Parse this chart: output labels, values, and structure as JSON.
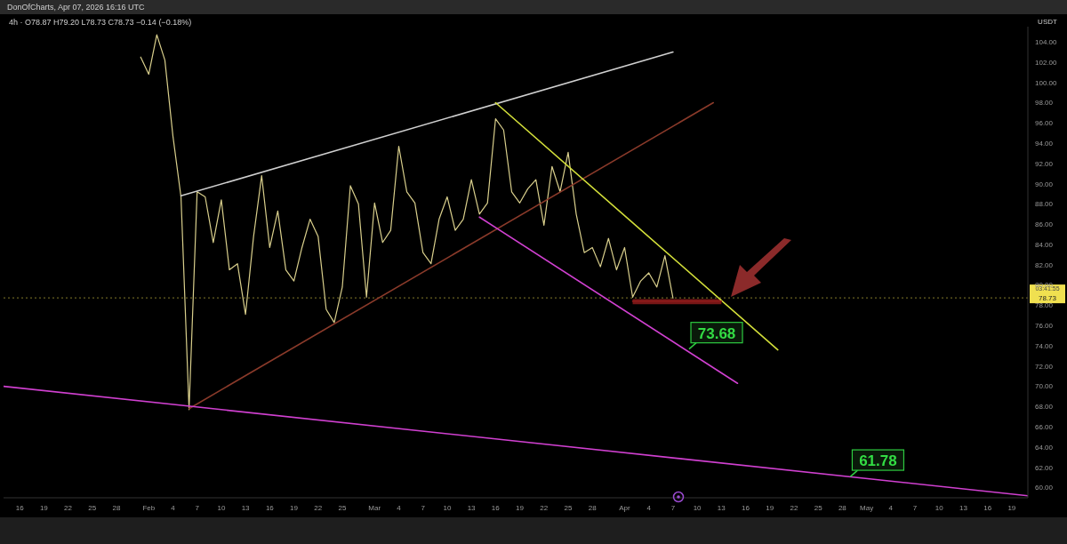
{
  "chart_data": {
    "type": "line",
    "title": "4h · O78.87 H79.20 L78.73 C78.73 −0.14 (−0.18%)",
    "subtitle": "DonOfCharts, Apr 07, 2026 16:16 UTC",
    "ylabel": "USDT",
    "xlim": [
      "--01-14",
      "--05-21"
    ],
    "ylim": [
      59,
      105.5
    ],
    "xticks": [
      {
        "value": "--01-16",
        "label": "16"
      },
      {
        "value": "--01-19",
        "label": "19"
      },
      {
        "value": "--01-22",
        "label": "22"
      },
      {
        "value": "--01-25",
        "label": "25"
      },
      {
        "value": "--01-28",
        "label": "28"
      },
      {
        "value": "--02-01",
        "label": "Feb"
      },
      {
        "value": "--02-04",
        "label": "4"
      },
      {
        "value": "--02-07",
        "label": "7"
      },
      {
        "value": "--02-10",
        "label": "10"
      },
      {
        "value": "--02-13",
        "label": "13"
      },
      {
        "value": "--02-16",
        "label": "16"
      },
      {
        "value": "--02-19",
        "label": "19"
      },
      {
        "value": "--02-22",
        "label": "22"
      },
      {
        "value": "--02-25",
        "label": "25"
      },
      {
        "value": "--03-01",
        "label": "Mar"
      },
      {
        "value": "--03-04",
        "label": "4"
      },
      {
        "value": "--03-07",
        "label": "7"
      },
      {
        "value": "--03-10",
        "label": "10"
      },
      {
        "value": "--03-13",
        "label": "13"
      },
      {
        "value": "--03-16",
        "label": "16"
      },
      {
        "value": "--03-19",
        "label": "19"
      },
      {
        "value": "--03-22",
        "label": "22"
      },
      {
        "value": "--03-25",
        "label": "25"
      },
      {
        "value": "--03-28",
        "label": "28"
      },
      {
        "value": "--04-01",
        "label": "Apr"
      },
      {
        "value": "--04-04",
        "label": "4"
      },
      {
        "value": "--04-07",
        "label": "7"
      },
      {
        "value": "--04-10",
        "label": "10"
      },
      {
        "value": "--04-13",
        "label": "13"
      },
      {
        "value": "--04-16",
        "label": "16"
      },
      {
        "value": "--04-19",
        "label": "19"
      },
      {
        "value": "--04-22",
        "label": "22"
      },
      {
        "value": "--04-25",
        "label": "25"
      },
      {
        "value": "--04-28",
        "label": "28"
      },
      {
        "value": "--05-01",
        "label": "May"
      },
      {
        "value": "--05-04",
        "label": "4"
      },
      {
        "value": "--05-07",
        "label": "7"
      },
      {
        "value": "--05-10",
        "label": "10"
      },
      {
        "value": "--05-13",
        "label": "13"
      },
      {
        "value": "--05-16",
        "label": "16"
      },
      {
        "value": "--05-19",
        "label": "19"
      }
    ],
    "yticks": [
      {
        "value": 60,
        "label": "60.00"
      },
      {
        "value": 62,
        "label": "62.00"
      },
      {
        "value": 64,
        "label": "64.00"
      },
      {
        "value": 66,
        "label": "66.00"
      },
      {
        "value": 68,
        "label": "68.00"
      },
      {
        "value": 70,
        "label": "70.00"
      },
      {
        "value": 72,
        "label": "72.00"
      },
      {
        "value": 74,
        "label": "74.00"
      },
      {
        "value": 76,
        "label": "76.00"
      },
      {
        "value": 78,
        "label": "78.00"
      },
      {
        "value": 80,
        "label": "80.00"
      },
      {
        "value": 82,
        "label": "82.00"
      },
      {
        "value": 84,
        "label": "84.00"
      },
      {
        "value": 86,
        "label": "86.00"
      },
      {
        "value": 88,
        "label": "88.00"
      },
      {
        "value": 90,
        "label": "90.00"
      },
      {
        "value": 92,
        "label": "92.00"
      },
      {
        "value": 94,
        "label": "94.00"
      },
      {
        "value": 96,
        "label": "96.00"
      },
      {
        "value": 98,
        "label": "98.00"
      },
      {
        "value": 100,
        "label": "100.00"
      },
      {
        "value": 102,
        "label": "102.00"
      },
      {
        "value": 104,
        "label": "104.00"
      }
    ],
    "grid": false,
    "legend": false,
    "marker": "none",
    "line_style": "solid",
    "series": [
      {
        "color": "#d9cf8c",
        "x": [
          "--01-31",
          "--02-01",
          "--02-02",
          "--02-03",
          "--02-04",
          "--02-05",
          "--02-06",
          "--02-07",
          "--02-08",
          "--02-09",
          "--02-10",
          "--02-11",
          "--02-12",
          "--02-13",
          "--02-14",
          "--02-15",
          "--02-16",
          "--02-17",
          "--02-18",
          "--02-19",
          "--02-20",
          "--02-21",
          "--02-22",
          "--02-23",
          "--02-24",
          "--02-25",
          "--02-26",
          "--02-27",
          "--02-28",
          "--03-01",
          "--03-02",
          "--03-03",
          "--03-04",
          "--03-05",
          "--03-06",
          "--03-07",
          "--03-08",
          "--03-09",
          "--03-10",
          "--03-11",
          "--03-12",
          "--03-13",
          "--03-14",
          "--03-15",
          "--03-16",
          "--03-17",
          "--03-18",
          "--03-19",
          "--03-20",
          "--03-21",
          "--03-22",
          "--03-23",
          "--03-24",
          "--03-25",
          "--03-26",
          "--03-27",
          "--03-28",
          "--03-29",
          "--03-30",
          "--03-31",
          "--04-01",
          "--04-02",
          "--04-03",
          "--04-04",
          "--04-05",
          "--04-06",
          "--04-07"
        ],
        "values": [
          102.5,
          100.8,
          104.7,
          102.2,
          94.7,
          88.7,
          67.7,
          89.2,
          88.7,
          84.2,
          88.4,
          81.5,
          82.1,
          77.1,
          84.8,
          90.8,
          83.7,
          87.3,
          81.5,
          80.4,
          83.7,
          86.5,
          84.8,
          77.6,
          76.3,
          79.8,
          89.8,
          88.0,
          78.8,
          88.1,
          84.2,
          85.4,
          93.7,
          89.2,
          88.1,
          83.2,
          82.1,
          86.5,
          88.7,
          85.4,
          86.5,
          90.4,
          87.0,
          88.1,
          96.4,
          95.3,
          89.2,
          88.1,
          89.5,
          90.4,
          85.9,
          91.7,
          89.2,
          93.1,
          87.0,
          83.2,
          83.7,
          81.8,
          84.6,
          81.5,
          83.7,
          78.8,
          80.4,
          81.2,
          79.8,
          82.9,
          78.7
        ]
      },
      {
        "color": "#d0d0d0",
        "x": [
          "--02-05",
          "--04-07"
        ],
        "values": [
          88.8,
          103.0
        ]
      },
      {
        "color": "#8a3a2a",
        "x": [
          "--02-06",
          "--04-12"
        ],
        "values": [
          67.8,
          98.0
        ]
      },
      {
        "color": "#d4e03a",
        "x": [
          "--03-16",
          "--04-20"
        ],
        "values": [
          98.0,
          73.6
        ]
      },
      {
        "color": "#d040d0",
        "x": [
          "--03-14",
          "--04-15"
        ],
        "values": [
          86.7,
          70.3
        ]
      },
      {
        "color": "#d040d0",
        "x": [
          "--01-14",
          "--05-21"
        ],
        "values": [
          70.0,
          59.2
        ]
      },
      {
        "color": "#8b1a1a",
        "x": [
          "--04-02",
          "--04-13"
        ],
        "values": [
          78.4,
          78.4
        ],
        "lower": [
          78.1,
          78.1
        ],
        "upper": [
          78.6,
          78.6
        ]
      }
    ],
    "ref_lines": [
      {
        "axis": "y",
        "value": 78.73,
        "label": "78.73",
        "color": "#f0e050",
        "line_style": "dotted"
      }
    ],
    "annotations": [
      {
        "text": "73.68",
        "x": "--04-09",
        "y": 73.68
      },
      {
        "text": "61.78",
        "x": "--04-29",
        "y": 61.1
      },
      "03:41:55"
    ]
  }
}
